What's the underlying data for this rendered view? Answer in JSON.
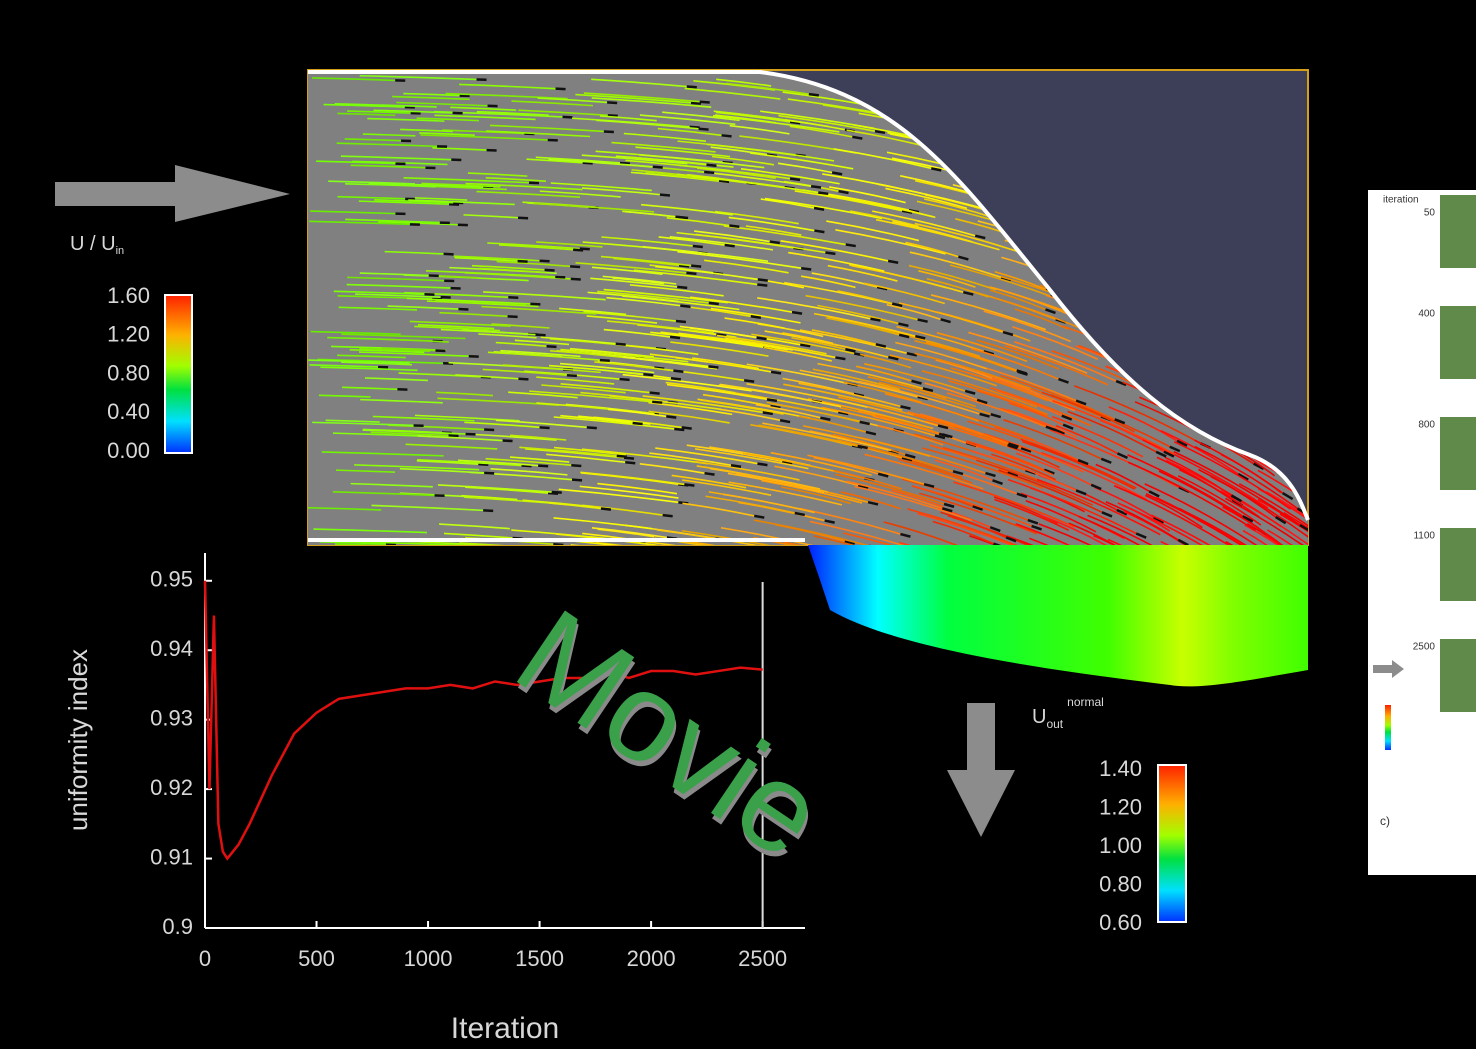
{
  "chart_data": {
    "type": "line",
    "xlabel": "Iteration",
    "ylabel": "uniformity index",
    "x": [
      0,
      20,
      40,
      60,
      80,
      100,
      150,
      200,
      300,
      400,
      500,
      600,
      700,
      800,
      900,
      1000,
      1100,
      1200,
      1300,
      1400,
      1500,
      1600,
      1700,
      1800,
      1900,
      2000,
      2100,
      2200,
      2300,
      2400,
      2500
    ],
    "series": [
      {
        "name": "uniformity index",
        "color": "#e01010",
        "values": [
          0.95,
          0.92,
          0.945,
          0.915,
          0.911,
          0.91,
          0.912,
          0.915,
          0.922,
          0.928,
          0.931,
          0.933,
          0.9335,
          0.934,
          0.9345,
          0.9345,
          0.935,
          0.9345,
          0.9355,
          0.935,
          0.9355,
          0.936,
          0.936,
          0.937,
          0.936,
          0.937,
          0.937,
          0.9365,
          0.937,
          0.9375,
          0.9372
        ]
      }
    ],
    "xlim": [
      0,
      2690
    ],
    "ylim": [
      0.9,
      0.954
    ],
    "xticks": [
      0,
      500,
      1000,
      1500,
      2000,
      2500
    ],
    "yticks": [
      0.9,
      0.91,
      0.92,
      0.93,
      0.94,
      0.95
    ]
  },
  "annotation": "Movie",
  "inlet_colorbar": {
    "label": "U / U",
    "subscript": "in",
    "ticks": [
      "1.60",
      "1.20",
      "0.80",
      "0.40",
      "0.00"
    ]
  },
  "outlet_colorbar": {
    "label": "U",
    "subscript": "out",
    "superscript": "normal",
    "ticks": [
      "1.40",
      "1.20",
      "1.00",
      "0.80",
      "0.60"
    ]
  },
  "thumbnails": {
    "header": "iteration",
    "labels": [
      "50",
      "400",
      "800",
      "1100",
      "2500"
    ],
    "panel_label": "c)"
  }
}
